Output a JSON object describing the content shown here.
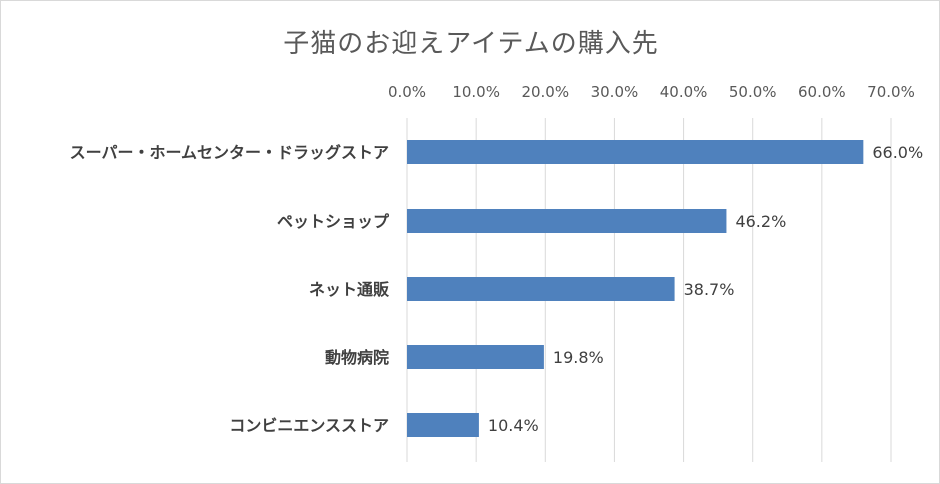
{
  "chart_data": {
    "type": "bar",
    "orientation": "horizontal",
    "title": "子猫のお迎えアイテムの購入先",
    "categories": [
      "スーパー・ホームセンター・ドラッグストア",
      "ペットショップ",
      "ネット通販",
      "動物病院",
      "コンビニエンスストア"
    ],
    "values": [
      66.0,
      46.2,
      38.7,
      19.8,
      10.4
    ],
    "value_labels": [
      "66.0%",
      "46.2%",
      "38.7%",
      "19.8%",
      "10.4%"
    ],
    "xlim": [
      0,
      70
    ],
    "xticks": [
      0,
      10,
      20,
      30,
      40,
      50,
      60,
      70
    ],
    "xtick_labels": [
      "0.0%",
      "10.0%",
      "20.0%",
      "30.0%",
      "40.0%",
      "50.0%",
      "60.0%",
      "70.0%"
    ],
    "x_axis_position": "top",
    "grid": true,
    "legend": "none",
    "bar_color": "#4f81bd"
  }
}
